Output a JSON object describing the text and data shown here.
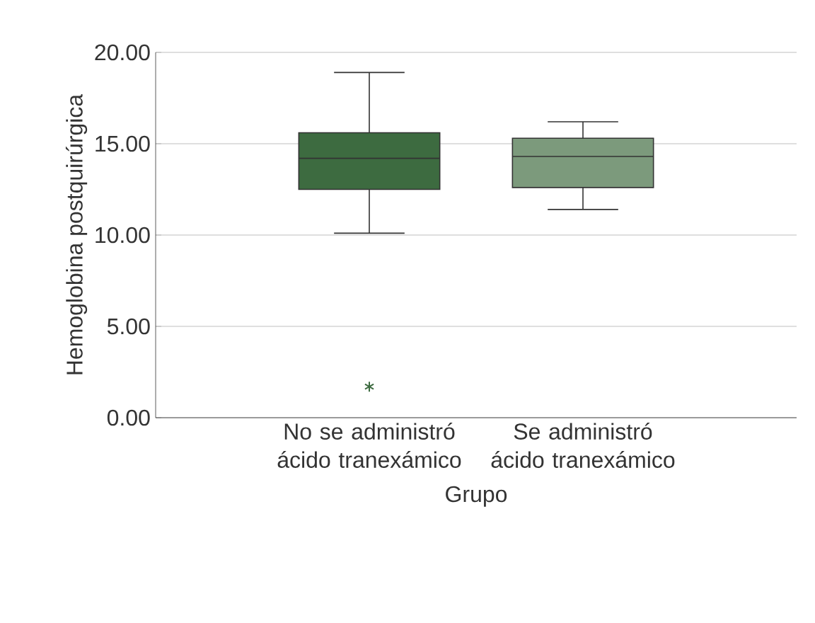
{
  "chart_data": {
    "type": "box",
    "xlabel": "Grupo",
    "ylabel": "Hemoglobina postquirúrgica",
    "categories": [
      "No se administró ácido tranexámico",
      "Se administró ácido tranexámico"
    ],
    "boxes": [
      {
        "low": 10.1,
        "q1": 12.5,
        "median": 14.2,
        "q3": 15.6,
        "high": 18.9,
        "outliers": [
          1.7
        ]
      },
      {
        "low": 11.4,
        "q1": 12.6,
        "median": 14.3,
        "q3": 15.3,
        "high": 16.2
      }
    ],
    "colors": [
      "#3d6b40",
      "#7c9a7c"
    ],
    "ylim": [
      0,
      20
    ],
    "yticks": [
      {
        "value": 0,
        "label": "0.00"
      },
      {
        "value": 5,
        "label": "5.00"
      },
      {
        "value": 10,
        "label": "10.00"
      },
      {
        "value": 15,
        "label": "15.00"
      },
      {
        "value": 20,
        "label": "20.00"
      }
    ],
    "grid": "y",
    "marker": "star"
  }
}
